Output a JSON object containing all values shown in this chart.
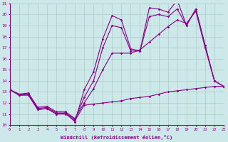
{
  "xlabel": "Windchill (Refroidissement éolien,°C)",
  "background_color": "#cce8e8",
  "grid_color": "#b0c8c8",
  "line_color": "#880088",
  "x_min": 0,
  "x_max": 23,
  "y_min": 10,
  "y_max": 21,
  "lines": [
    {
      "x": [
        0,
        1,
        2,
        3,
        4,
        5,
        6,
        7,
        8,
        9,
        10,
        11,
        12,
        13,
        14,
        15,
        16,
        17,
        18,
        19,
        20,
        21,
        22,
        23
      ],
      "y": [
        13.2,
        12.7,
        12.8,
        11.4,
        11.5,
        11.0,
        11.1,
        10.3,
        13.2,
        14.8,
        17.8,
        19.9,
        19.5,
        16.9,
        16.7,
        20.6,
        20.5,
        20.2,
        21.3,
        19.0,
        20.5,
        17.2,
        14.0,
        13.5
      ]
    },
    {
      "x": [
        0,
        1,
        2,
        3,
        4,
        5,
        6,
        7,
        8,
        9,
        10,
        11,
        12,
        13,
        14,
        15,
        16,
        17,
        18,
        19,
        20,
        21,
        22,
        23
      ],
      "y": [
        13.2,
        12.8,
        12.8,
        11.5,
        11.6,
        11.1,
        11.1,
        10.5,
        12.5,
        14.0,
        17.0,
        19.0,
        18.8,
        16.7,
        16.7,
        19.8,
        20.0,
        19.8,
        20.5,
        19.0,
        20.5,
        17.2,
        14.0,
        13.5
      ]
    },
    {
      "x": [
        0,
        1,
        2,
        3,
        4,
        5,
        6,
        7,
        8,
        9,
        10,
        11,
        12,
        13,
        14,
        15,
        16,
        17,
        18,
        19,
        20,
        21,
        22,
        23
      ],
      "y": [
        13.2,
        12.8,
        12.9,
        11.6,
        11.7,
        11.2,
        11.2,
        10.6,
        12.0,
        13.3,
        15.0,
        16.5,
        16.5,
        16.5,
        16.8,
        17.5,
        18.2,
        18.9,
        19.5,
        19.2,
        20.3,
        17.0,
        14.0,
        13.5
      ]
    },
    {
      "x": [
        0,
        1,
        2,
        3,
        4,
        5,
        6,
        7,
        8,
        9,
        10,
        11,
        12,
        13,
        14,
        15,
        16,
        17,
        18,
        19,
        20,
        21,
        22,
        23
      ],
      "y": [
        13.2,
        12.7,
        12.7,
        11.4,
        11.5,
        11.0,
        11.0,
        10.4,
        11.8,
        11.9,
        12.0,
        12.1,
        12.2,
        12.4,
        12.5,
        12.6,
        12.8,
        13.0,
        13.1,
        13.2,
        13.3,
        13.4,
        13.5,
        13.5
      ]
    }
  ]
}
